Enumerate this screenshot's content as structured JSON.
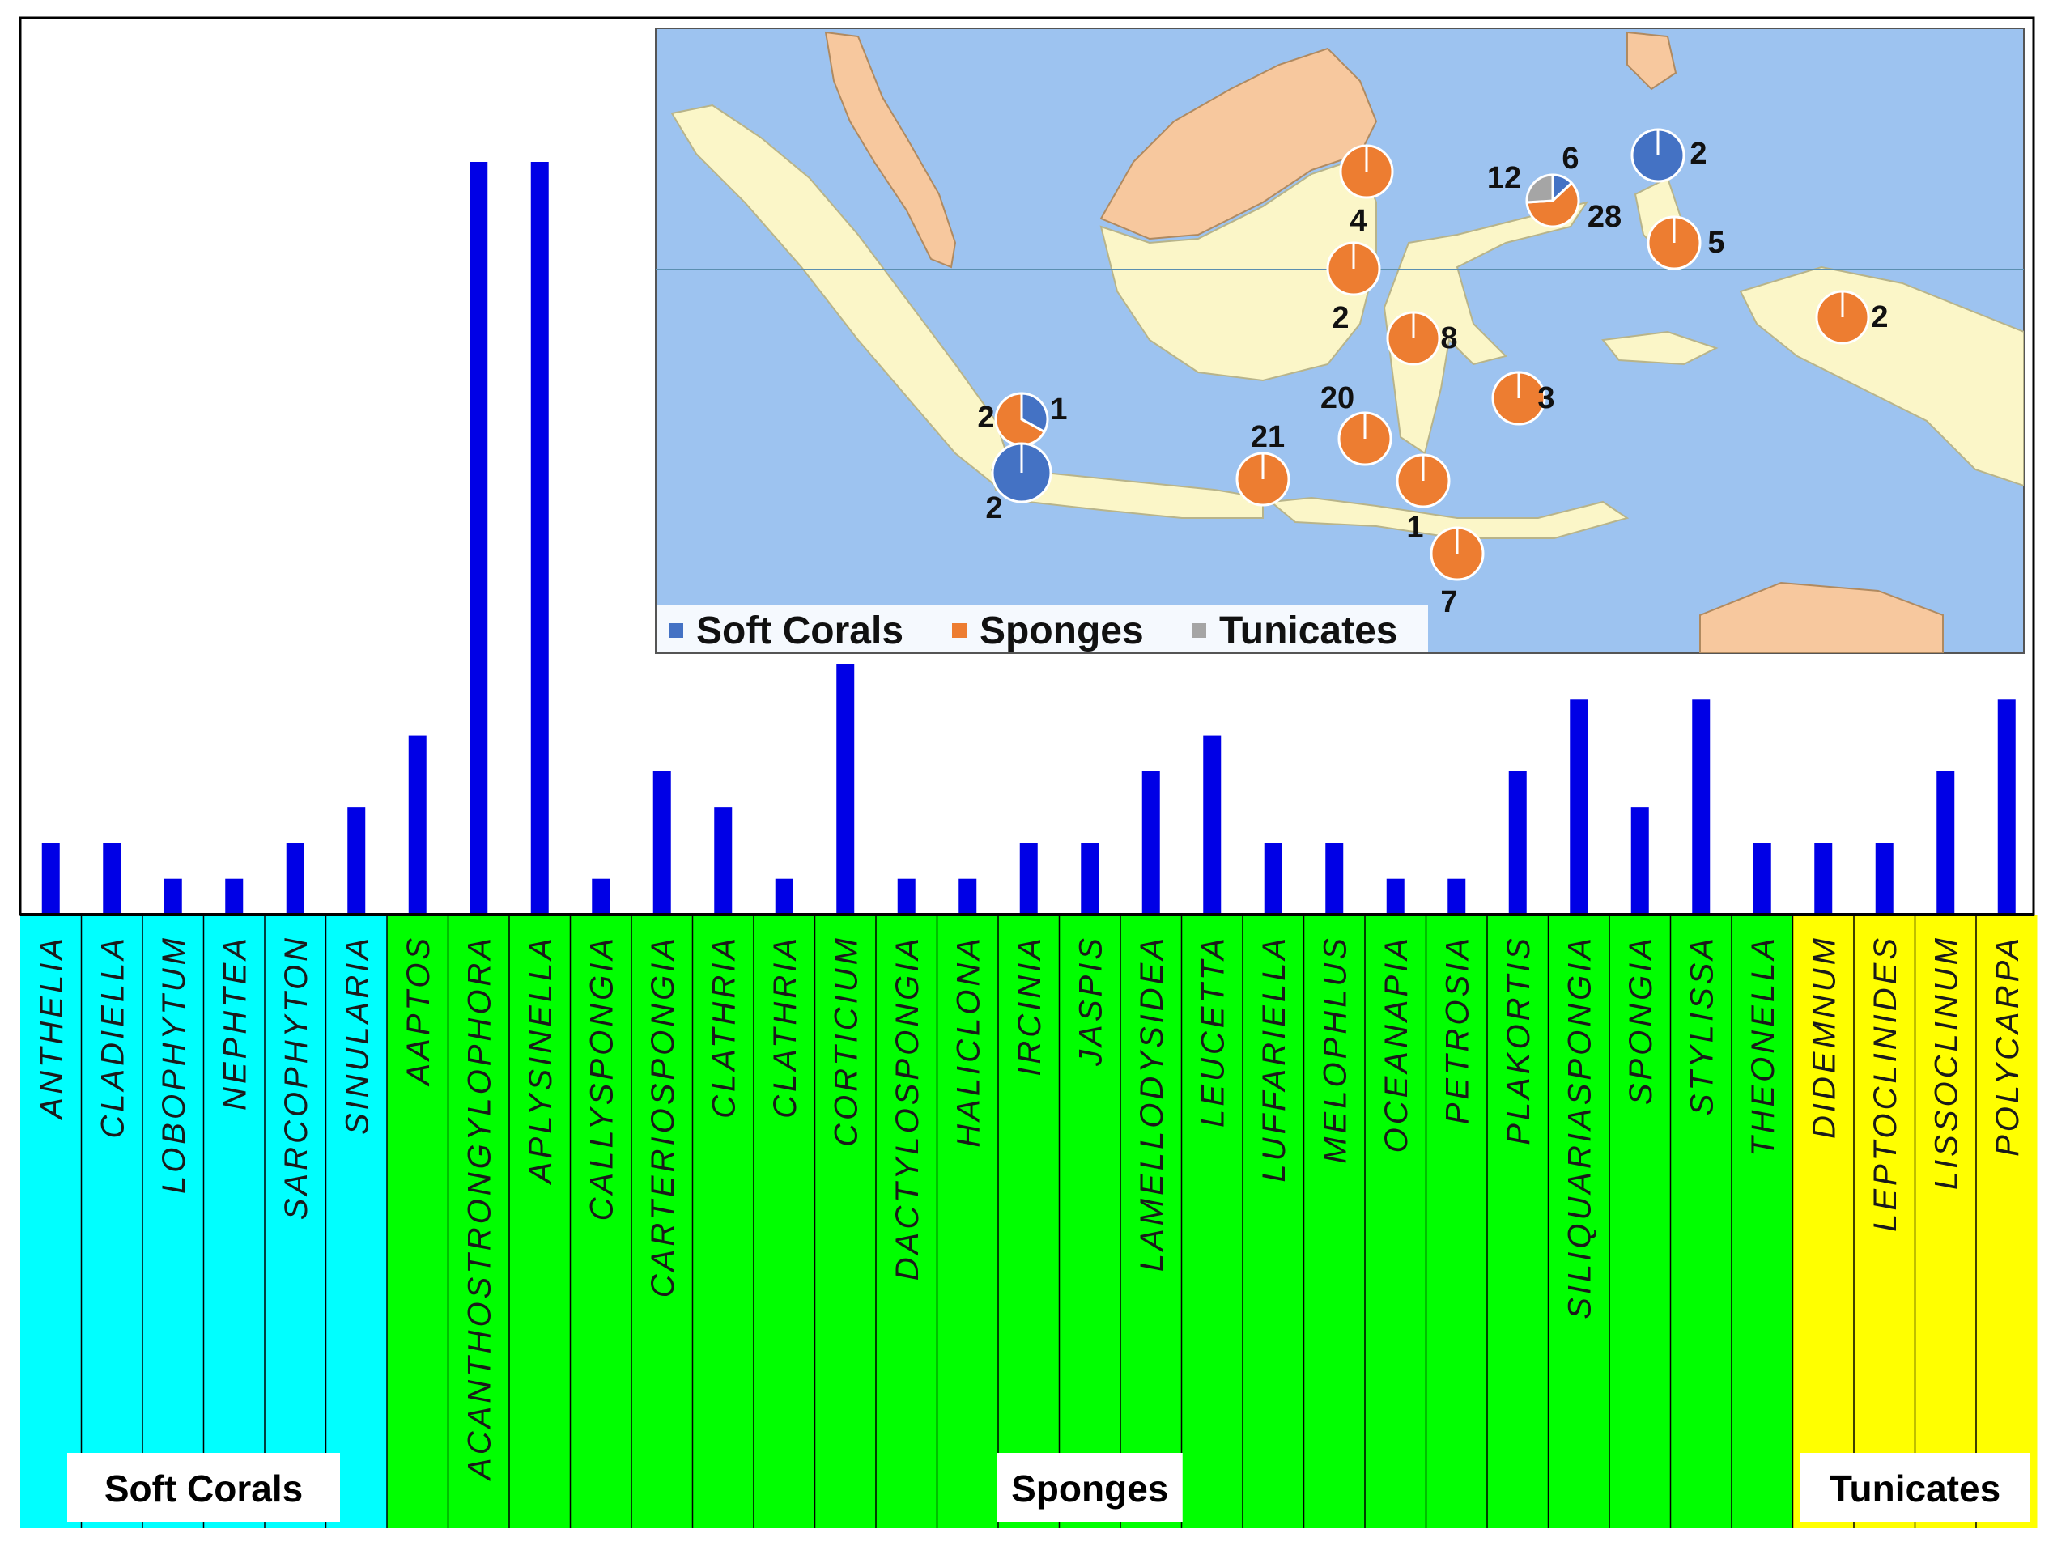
{
  "chart_data": {
    "type": "bar",
    "title": "",
    "xlabel": "",
    "ylabel": "",
    "ylim": [
      0,
      21
    ],
    "grid": false,
    "categories": [
      "ANTHELIA",
      "CLADIELLA",
      "LOBOPHYTUM",
      "NEPHTEA",
      "SARCOPHYTON",
      "SINULARIA",
      "AAPTOS",
      "ACANTHOSTRONGYLOPHORA",
      "APLYSINELLA",
      "CALLYSPONGIA",
      "CARTERIOSPONGIA",
      "CLATHRIA",
      "CLATHRIA",
      "CORTICIUM",
      "DACTYLOSPONGIA",
      "HALICLONA",
      "IRCINIA",
      "JASPIS",
      "LAMELLODYSIDEA",
      "LEUCETTA",
      "LUFFARIELLA",
      "MELOPHLUS",
      "OCEANAPIA",
      "PETROSIA",
      "PLAKORTIS",
      "SILIQUARIASPONGIA",
      "SPONGIA",
      "STYLISSA",
      "THEONELLA",
      "DIDEMNUM",
      "LEPTOCLINIDES",
      "LISSOCLINUM",
      "POLYCARPA"
    ],
    "values": [
      2,
      2,
      1,
      1,
      2,
      3,
      5,
      21,
      21,
      1,
      4,
      3,
      1,
      7,
      1,
      1,
      2,
      2,
      4,
      5,
      2,
      2,
      1,
      1,
      4,
      6,
      3,
      6,
      2,
      2,
      2,
      4,
      6
    ],
    "groups": [
      {
        "name": "Soft Corals",
        "start": 0,
        "end": 5,
        "color": "#00ffff"
      },
      {
        "name": "Sponges",
        "start": 6,
        "end": 28,
        "color": "#00ff00"
      },
      {
        "name": "Tunicates",
        "start": 29,
        "end": 32,
        "color": "#ffff00"
      }
    ],
    "bar_color": "#0000e6",
    "inset_map": {
      "legend": [
        {
          "name": "Soft Corals",
          "color": "#4472c4"
        },
        {
          "name": "Sponges",
          "color": "#ed7d31"
        },
        {
          "name": "Tunicates",
          "color": "#a5a5a5"
        }
      ],
      "legend_placement": "bottom-left",
      "sites": [
        {
          "labels": [
            "4"
          ],
          "fractions": {
            "soft_corals": 0,
            "sponges": 1,
            "tunicates": 0
          }
        },
        {
          "labels": [
            "12",
            "6",
            "28"
          ],
          "fractions": {
            "soft_corals": 0.13,
            "sponges": 0.61,
            "tunicates": 0.26
          }
        },
        {
          "labels": [
            "2"
          ],
          "fractions": {
            "soft_corals": 1,
            "sponges": 0,
            "tunicates": 0
          }
        },
        {
          "labels": [
            "5"
          ],
          "fractions": {
            "soft_corals": 0,
            "sponges": 1,
            "tunicates": 0
          }
        },
        {
          "labels": [
            "2"
          ],
          "fractions": {
            "soft_corals": 0,
            "sponges": 1,
            "tunicates": 0
          }
        },
        {
          "labels": [
            "8"
          ],
          "fractions": {
            "soft_corals": 0,
            "sponges": 1,
            "tunicates": 0
          }
        },
        {
          "labels": [
            "2"
          ],
          "fractions": {
            "soft_corals": 0,
            "sponges": 1,
            "tunicates": 0
          }
        },
        {
          "labels": [
            "2",
            "1"
          ],
          "fractions": {
            "soft_corals": 0.33,
            "sponges": 0.67,
            "tunicates": 0
          }
        },
        {
          "labels": [
            "2"
          ],
          "fractions": {
            "soft_corals": 1,
            "sponges": 0,
            "tunicates": 0
          }
        },
        {
          "labels": [
            "21"
          ],
          "fractions": {
            "soft_corals": 0,
            "sponges": 1,
            "tunicates": 0
          }
        },
        {
          "labels": [
            "20"
          ],
          "fractions": {
            "soft_corals": 0,
            "sponges": 1,
            "tunicates": 0
          }
        },
        {
          "labels": [
            "1"
          ],
          "fractions": {
            "soft_corals": 0,
            "sponges": 1,
            "tunicates": 0
          }
        },
        {
          "labels": [
            "3"
          ],
          "fractions": {
            "soft_corals": 0,
            "sponges": 1,
            "tunicates": 0
          }
        },
        {
          "labels": [
            "7"
          ],
          "fractions": {
            "soft_corals": 0,
            "sponges": 1,
            "tunicates": 0
          }
        }
      ]
    }
  },
  "colors": {
    "ocean": "#9dc3f0",
    "land": "#fbf6c8",
    "land_other": "#f7c89e"
  }
}
